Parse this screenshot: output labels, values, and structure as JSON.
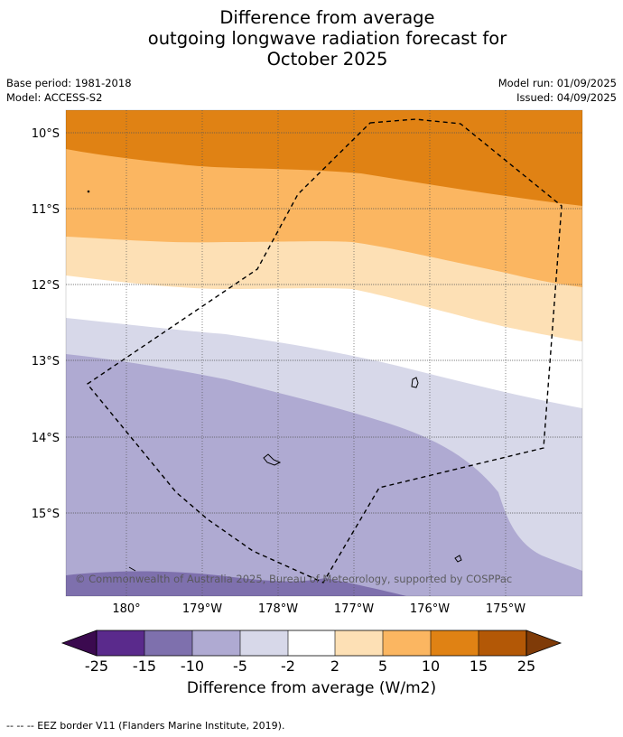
{
  "title": {
    "line1": "Difference from average",
    "line2": "outgoing longwave radiation forecast for",
    "line3": "October 2025"
  },
  "meta": {
    "base_period": "Base period: 1981-2018",
    "model": "Model: ACCESS-S2",
    "model_run": "Model run: 01/09/2025",
    "issued": "Issued: 04/09/2025"
  },
  "map": {
    "lat_labels": [
      "10°S",
      "11°S",
      "12°S",
      "13°S",
      "14°S",
      "15°S"
    ],
    "lon_labels": [
      "180°",
      "179°W",
      "178°W",
      "177°W",
      "176°W",
      "175°W"
    ],
    "copyright": "© Commonwealth of Australia 2025, Bureau of Meteorology, supported by COSPPac"
  },
  "colorbar": {
    "ticks": [
      "-25",
      "-15",
      "-10",
      "-5",
      "-2",
      "2",
      "5",
      "10",
      "15",
      "25"
    ],
    "colors": {
      "below_-25": "#3b0a4f",
      "-25_-15": "#5a2a8c",
      "-15_-10": "#7e70ad",
      "-10_-5": "#afaad2",
      "-5_-2": "#d7d8e9",
      "-2_2": "#ffffff",
      "2_5": "#fde0b5",
      "5_10": "#fbb661",
      "10_15": "#e08214",
      "15_25": "#b35806",
      "above_25": "#7f3b08"
    },
    "label": "Difference from average (W/m2)"
  },
  "footer": {
    "legend_line": "--  --  -- EEZ border V11 (Flanders Marine Institute, 2019)."
  }
}
